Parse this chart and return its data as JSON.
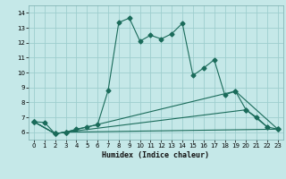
{
  "title": "",
  "xlabel": "Humidex (Indice chaleur)",
  "background_color": "#c5e8e8",
  "grid_color": "#9ecece",
  "line_color": "#1a6b5a",
  "xlim": [
    -0.5,
    23.5
  ],
  "ylim": [
    5.5,
    14.5
  ],
  "xticks": [
    0,
    1,
    2,
    3,
    4,
    5,
    6,
    7,
    8,
    9,
    10,
    11,
    12,
    13,
    14,
    15,
    16,
    17,
    18,
    19,
    20,
    21,
    22,
    23
  ],
  "yticks": [
    6,
    7,
    8,
    9,
    10,
    11,
    12,
    13,
    14
  ],
  "series": [
    {
      "x": [
        0,
        1,
        2,
        3,
        4,
        5,
        6,
        7,
        8,
        9,
        10,
        11,
        12,
        13,
        14,
        15,
        16,
        17,
        18,
        19,
        20,
        21,
        22,
        23
      ],
      "y": [
        6.7,
        6.65,
        5.9,
        6.0,
        6.2,
        6.35,
        6.5,
        8.8,
        13.35,
        13.65,
        12.1,
        12.5,
        12.25,
        12.6,
        13.3,
        9.8,
        10.3,
        10.85,
        8.5,
        8.75,
        7.5,
        7.0,
        6.35,
        6.2
      ]
    },
    {
      "x": [
        0,
        2,
        3,
        23
      ],
      "y": [
        6.7,
        5.9,
        6.0,
        6.2
      ]
    },
    {
      "x": [
        0,
        2,
        3,
        19,
        23
      ],
      "y": [
        6.7,
        5.9,
        6.0,
        8.75,
        6.2
      ]
    },
    {
      "x": [
        0,
        2,
        3,
        20,
        22
      ],
      "y": [
        6.7,
        5.9,
        6.0,
        7.5,
        6.35
      ]
    }
  ]
}
